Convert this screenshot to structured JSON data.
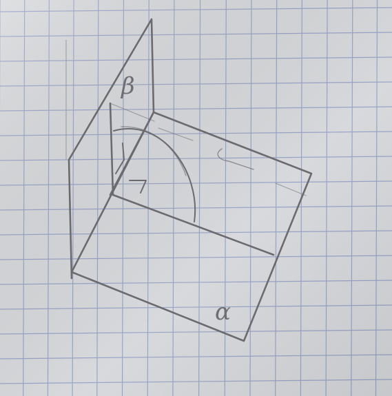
{
  "labels": {
    "beta": "β",
    "alpha": "α"
  },
  "colors": {
    "paper": "#d7d9dc",
    "grid": "#8f9cc4",
    "pencil": "#6b6b6f"
  }
}
